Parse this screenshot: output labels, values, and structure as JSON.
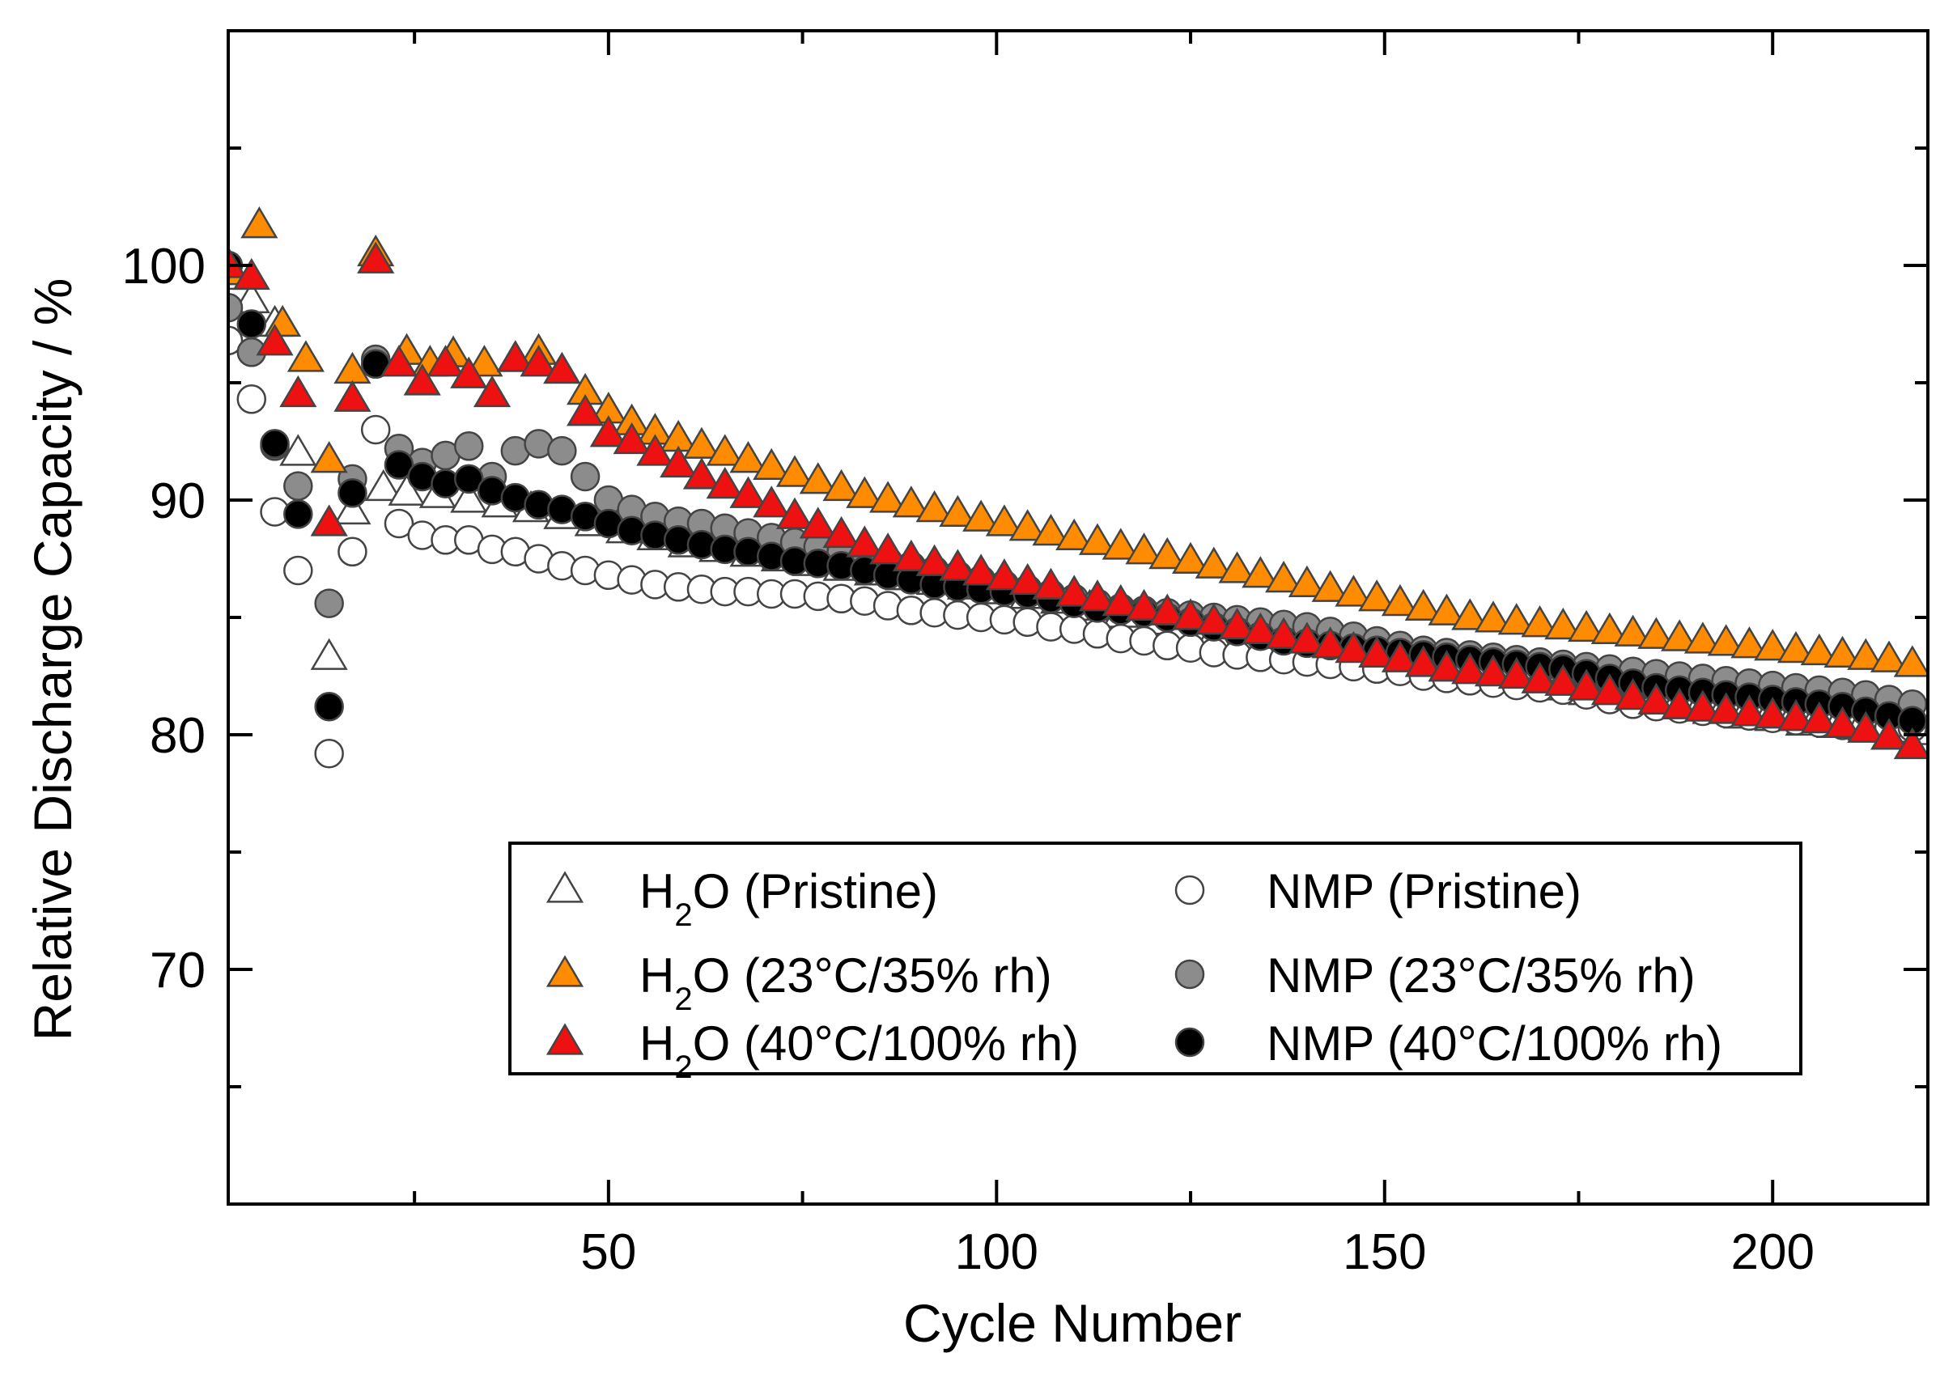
{
  "chart_data": {
    "type": "scatter",
    "title": "",
    "xlabel": "Cycle Number",
    "ylabel": "Relative Discharge Capacity / %",
    "xlim": [
      1,
      220
    ],
    "ylim": [
      60,
      110
    ],
    "xticks": [
      50,
      100,
      150,
      200
    ],
    "yticks": [
      70,
      80,
      90,
      100
    ],
    "grid": false,
    "legend_position": "bottom-right",
    "colors": {
      "orange": "#ff8c00",
      "red": "#ee1111",
      "gray": "#8c8c8c",
      "black": "#000000",
      "open_fill": "#ffffff",
      "marker_edge": "#555555"
    },
    "series": [
      {
        "name_main": "H",
        "name_sub": "2",
        "name_rest": "O (Pristine)",
        "marker": "triangle",
        "fill": "#ffffff",
        "x": [
          1,
          4,
          7,
          10,
          14,
          17,
          21,
          24,
          28,
          32,
          36,
          40,
          44,
          48,
          52,
          56,
          60,
          64,
          68,
          72,
          76,
          80,
          84,
          88,
          92,
          96,
          100,
          104,
          108,
          112,
          116,
          120,
          124,
          128,
          132,
          136,
          140,
          144,
          148,
          152,
          156,
          160,
          164,
          168,
          172,
          176,
          180,
          184,
          188,
          192,
          196,
          200,
          204,
          208,
          212,
          216,
          220
        ],
        "y": [
          99.5,
          98.5,
          97.5,
          92.0,
          83.3,
          89.5,
          90.5,
          90.3,
          90.2,
          90.0,
          89.8,
          89.6,
          89.3,
          89.0,
          88.7,
          88.4,
          88.1,
          87.9,
          87.7,
          87.5,
          87.3,
          87.1,
          86.9,
          86.7,
          86.5,
          86.3,
          86.1,
          85.9,
          85.7,
          85.4,
          85.1,
          84.8,
          84.5,
          84.2,
          84.0,
          83.8,
          83.6,
          83.4,
          83.2,
          83.0,
          82.8,
          82.6,
          82.4,
          82.2,
          82.0,
          81.8,
          81.6,
          81.4,
          81.2,
          81.0,
          80.8,
          80.7,
          80.5,
          80.4,
          80.3,
          80.2,
          80.1
        ]
      },
      {
        "name_main": "H",
        "name_sub": "2",
        "name_rest": "O (23°C/35% rh)",
        "marker": "triangle",
        "fill": "#ff8c00",
        "x": [
          1,
          5,
          8,
          11,
          14,
          17,
          20,
          24,
          27,
          30,
          34,
          38,
          41,
          44,
          47,
          50,
          53,
          56,
          59,
          62,
          65,
          68,
          71,
          74,
          77,
          80,
          83,
          86,
          89,
          92,
          95,
          98,
          101,
          104,
          107,
          110,
          113,
          116,
          119,
          122,
          125,
          128,
          131,
          134,
          137,
          140,
          143,
          146,
          149,
          152,
          155,
          158,
          161,
          164,
          167,
          170,
          173,
          176,
          179,
          182,
          185,
          188,
          191,
          194,
          197,
          200,
          203,
          206,
          209,
          212,
          215,
          218
        ],
        "y": [
          99.7,
          101.7,
          97.5,
          96.0,
          91.7,
          95.5,
          100.5,
          96.3,
          95.8,
          96.2,
          95.8,
          96.0,
          96.3,
          95.5,
          94.6,
          93.8,
          93.3,
          92.9,
          92.6,
          92.3,
          92.0,
          91.7,
          91.4,
          91.1,
          90.8,
          90.5,
          90.2,
          90.0,
          89.8,
          89.6,
          89.4,
          89.2,
          89.0,
          88.8,
          88.6,
          88.4,
          88.2,
          88.0,
          87.8,
          87.6,
          87.4,
          87.2,
          87.0,
          86.8,
          86.6,
          86.4,
          86.2,
          86.0,
          85.8,
          85.6,
          85.4,
          85.2,
          85.0,
          84.9,
          84.8,
          84.7,
          84.6,
          84.5,
          84.4,
          84.3,
          84.2,
          84.1,
          84.0,
          83.9,
          83.8,
          83.7,
          83.6,
          83.5,
          83.4,
          83.3,
          83.2,
          83.0
        ]
      },
      {
        "name_main": "H",
        "name_sub": "2",
        "name_rest": "O (40°C/100% rh)",
        "marker": "triangle",
        "fill": "#ee1111",
        "x": [
          1,
          4,
          7,
          10,
          14,
          17,
          20,
          23,
          26,
          29,
          32,
          35,
          38,
          41,
          44,
          47,
          50,
          53,
          56,
          59,
          62,
          65,
          68,
          71,
          74,
          77,
          80,
          83,
          86,
          89,
          92,
          95,
          98,
          101,
          104,
          107,
          110,
          113,
          116,
          119,
          122,
          125,
          128,
          131,
          134,
          137,
          140,
          143,
          146,
          149,
          152,
          155,
          158,
          161,
          164,
          167,
          170,
          173,
          176,
          179,
          182,
          185,
          188,
          191,
          194,
          197,
          200,
          203,
          206,
          209,
          212,
          215,
          218
        ],
        "y": [
          100.0,
          99.5,
          96.7,
          94.5,
          89.0,
          94.3,
          100.2,
          95.8,
          95.0,
          95.8,
          95.3,
          94.5,
          96.0,
          95.8,
          95.5,
          93.7,
          92.8,
          92.5,
          92.0,
          91.5,
          91.0,
          90.6,
          90.2,
          89.8,
          89.3,
          88.9,
          88.5,
          88.1,
          87.8,
          87.5,
          87.3,
          87.1,
          86.9,
          86.7,
          86.5,
          86.3,
          86.0,
          85.8,
          85.6,
          85.4,
          85.2,
          85.0,
          84.8,
          84.6,
          84.4,
          84.2,
          84.0,
          83.8,
          83.6,
          83.4,
          83.2,
          83.0,
          82.8,
          82.7,
          82.6,
          82.5,
          82.3,
          82.2,
          82.0,
          81.8,
          81.6,
          81.4,
          81.2,
          81.1,
          81.0,
          80.9,
          80.8,
          80.7,
          80.6,
          80.4,
          80.2,
          79.9,
          79.5
        ]
      },
      {
        "name_main": "NMP (Pristine)",
        "name_sub": "",
        "name_rest": "",
        "marker": "circle",
        "fill": "#ffffff",
        "x": [
          1,
          4,
          7,
          10,
          14,
          17,
          20,
          23,
          26,
          29,
          32,
          35,
          38,
          41,
          44,
          47,
          50,
          53,
          56,
          59,
          62,
          65,
          68,
          71,
          74,
          77,
          80,
          83,
          86,
          89,
          92,
          95,
          98,
          101,
          104,
          107,
          110,
          113,
          116,
          119,
          122,
          125,
          128,
          131,
          134,
          137,
          140,
          143,
          146,
          149,
          152,
          155,
          158,
          161,
          164,
          167,
          170,
          173,
          176,
          179,
          182,
          185,
          188,
          191,
          194,
          197,
          200,
          203,
          206,
          209,
          212,
          215,
          218
        ],
        "y": [
          96.8,
          94.3,
          89.5,
          87.0,
          79.2,
          87.8,
          93.0,
          89.0,
          88.5,
          88.3,
          88.3,
          87.9,
          87.8,
          87.5,
          87.2,
          87.0,
          86.8,
          86.6,
          86.4,
          86.3,
          86.2,
          86.1,
          86.1,
          86.0,
          86.0,
          85.9,
          85.8,
          85.7,
          85.5,
          85.3,
          85.2,
          85.1,
          85.0,
          84.9,
          84.8,
          84.6,
          84.5,
          84.3,
          84.1,
          84.0,
          83.8,
          83.7,
          83.5,
          83.4,
          83.3,
          83.2,
          83.1,
          83.0,
          82.9,
          82.8,
          82.7,
          82.5,
          82.4,
          82.3,
          82.2,
          82.1,
          82.0,
          81.9,
          81.7,
          81.5,
          81.3,
          81.2,
          81.1,
          81.0,
          80.9,
          80.8,
          80.7,
          80.6,
          80.5,
          80.4,
          80.3,
          80.3,
          80.3
        ]
      },
      {
        "name_main": "NMP (23°C/35% rh)",
        "name_sub": "",
        "name_rest": "",
        "marker": "circle",
        "fill": "#8c8c8c",
        "x": [
          1,
          4,
          7,
          10,
          14,
          17,
          20,
          23,
          26,
          29,
          32,
          35,
          38,
          41,
          44,
          47,
          50,
          53,
          56,
          59,
          62,
          65,
          68,
          71,
          74,
          77,
          80,
          83,
          86,
          89,
          92,
          95,
          98,
          101,
          104,
          107,
          110,
          113,
          116,
          119,
          122,
          125,
          128,
          131,
          134,
          137,
          140,
          143,
          146,
          149,
          152,
          155,
          158,
          161,
          164,
          167,
          170,
          173,
          176,
          179,
          182,
          185,
          188,
          191,
          194,
          197,
          200,
          203,
          206,
          209,
          212,
          215,
          218
        ],
        "y": [
          98.2,
          96.3,
          92.3,
          90.6,
          85.6,
          90.9,
          96.0,
          92.2,
          91.6,
          91.9,
          92.3,
          91.0,
          92.1,
          92.4,
          92.1,
          91.0,
          90.0,
          89.6,
          89.3,
          89.1,
          89.0,
          88.8,
          88.6,
          88.4,
          88.2,
          88.0,
          87.8,
          87.6,
          87.4,
          87.2,
          87.0,
          86.8,
          86.6,
          86.4,
          86.2,
          86.0,
          85.8,
          85.6,
          85.4,
          85.3,
          85.2,
          85.1,
          85.0,
          84.9,
          84.8,
          84.7,
          84.6,
          84.4,
          84.2,
          84.0,
          83.8,
          83.6,
          83.5,
          83.4,
          83.3,
          83.2,
          83.1,
          83.0,
          82.9,
          82.8,
          82.7,
          82.6,
          82.5,
          82.4,
          82.3,
          82.2,
          82.1,
          82.0,
          81.9,
          81.8,
          81.7,
          81.5,
          81.3
        ]
      },
      {
        "name_main": "NMP (40°C/100% rh)",
        "name_sub": "",
        "name_rest": "",
        "marker": "circle",
        "fill": "#000000",
        "x": [
          1,
          4,
          7,
          10,
          14,
          17,
          20,
          23,
          26,
          29,
          32,
          35,
          38,
          41,
          44,
          47,
          50,
          53,
          56,
          59,
          62,
          65,
          68,
          71,
          74,
          77,
          80,
          83,
          86,
          89,
          92,
          95,
          98,
          101,
          104,
          107,
          110,
          113,
          116,
          119,
          122,
          125,
          128,
          131,
          134,
          137,
          140,
          143,
          146,
          149,
          152,
          155,
          158,
          161,
          164,
          167,
          170,
          173,
          176,
          179,
          182,
          185,
          188,
          191,
          194,
          197,
          200,
          203,
          206,
          209,
          212,
          215,
          218
        ],
        "y": [
          100.0,
          97.5,
          92.4,
          89.4,
          81.2,
          90.3,
          95.8,
          91.5,
          91.0,
          90.7,
          90.9,
          90.4,
          90.1,
          89.8,
          89.6,
          89.3,
          89.0,
          88.7,
          88.5,
          88.3,
          88.1,
          87.9,
          87.8,
          87.6,
          87.4,
          87.3,
          87.2,
          87.0,
          86.8,
          86.6,
          86.4,
          86.3,
          86.2,
          86.1,
          86.0,
          85.8,
          85.6,
          85.4,
          85.3,
          85.2,
          85.0,
          84.8,
          84.6,
          84.4,
          84.2,
          84.0,
          83.9,
          83.8,
          83.7,
          83.6,
          83.5,
          83.4,
          83.3,
          83.2,
          83.1,
          83.0,
          82.9,
          82.8,
          82.6,
          82.4,
          82.2,
          82.0,
          81.9,
          81.8,
          81.7,
          81.6,
          81.5,
          81.4,
          81.3,
          81.2,
          81.0,
          80.8,
          80.6
        ]
      }
    ]
  }
}
